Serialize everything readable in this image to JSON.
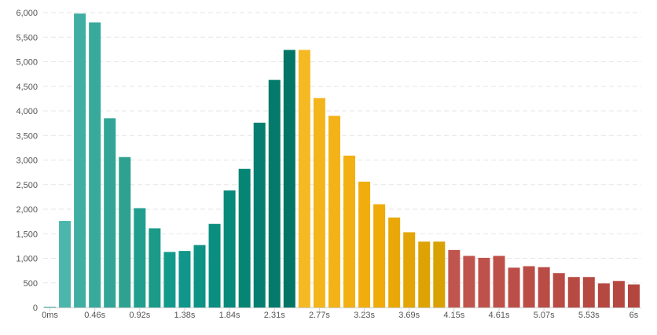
{
  "chart_data": {
    "type": "bar",
    "title": "",
    "xlabel": "",
    "ylabel": "",
    "ylim": [
      0,
      6000
    ],
    "grid": true,
    "y_ticks": [
      "0",
      "500",
      "1,000",
      "1,500",
      "2,000",
      "2,500",
      "3,000",
      "3,500",
      "4,000",
      "4,500",
      "5,000",
      "5,500",
      "6,000"
    ],
    "y_tick_values": [
      0,
      500,
      1000,
      1500,
      2000,
      2500,
      3000,
      3500,
      4000,
      4500,
      5000,
      5500,
      6000
    ],
    "x_ticks": [
      "0ms",
      "0.46s",
      "0.92s",
      "1.38s",
      "1.84s",
      "2.31s",
      "2.77s",
      "3.23s",
      "3.69s",
      "4.15s",
      "4.61s",
      "5.07s",
      "5.53s",
      "6s"
    ],
    "x_tick_bar_index": [
      0,
      3,
      6,
      9,
      12,
      15,
      18,
      21,
      24,
      27,
      30,
      33,
      36,
      39
    ],
    "values": [
      10,
      1760,
      5980,
      5800,
      3850,
      3060,
      2020,
      1610,
      1130,
      1150,
      1270,
      1700,
      2380,
      2820,
      3760,
      4630,
      5240,
      5240,
      4260,
      3900,
      3090,
      2560,
      2100,
      1830,
      1530,
      1340,
      1340,
      1170,
      1050,
      1010,
      1050,
      810,
      840,
      820,
      700,
      620,
      620,
      490,
      540,
      470
    ],
    "colors": [
      "#4db6ac",
      "#4db6ac",
      "#40aea2",
      "#38aa9c",
      "#33a596",
      "#2ea190",
      "#229e8e",
      "#1b9a88",
      "#149a8a",
      "#10968a",
      "#0d9284",
      "#0a8e80",
      "#08897a",
      "#068575",
      "#047e70",
      "#037a6b",
      "#027566",
      "#f5b923",
      "#f4b51c",
      "#f3b217",
      "#f2b012",
      "#f1ad0e",
      "#f0aa0a",
      "#e9a807",
      "#e3a505",
      "#dda304",
      "#d9a102",
      "#c0554f",
      "#bf534d",
      "#be514b",
      "#bd5049",
      "#bc4e48",
      "#bb4d47",
      "#ba4c46",
      "#b94b45",
      "#b84a44",
      "#b74943",
      "#b64842",
      "#b54741",
      "#b44640"
    ]
  }
}
